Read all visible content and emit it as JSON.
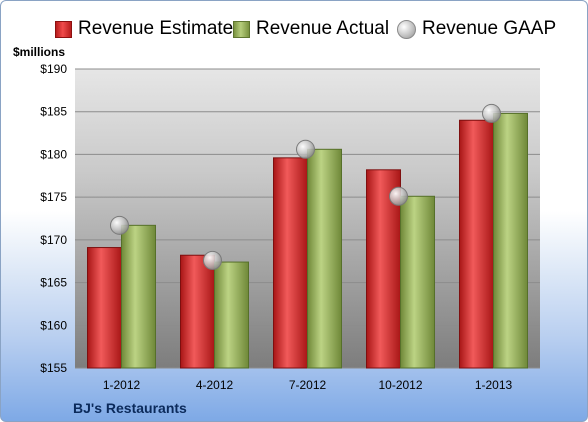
{
  "legend": {
    "estimate": "Revenue Estimate",
    "actual": "Revenue Actual",
    "gaap": "Revenue GAAP"
  },
  "unit_label": "$millions",
  "company": "BJ's Restaurants",
  "colors": {
    "estimate": "#d42a2a",
    "actual": "#98b255",
    "gaap": "#bdbdbd"
  },
  "chart_data": {
    "type": "bar",
    "categories": [
      "1-2012",
      "4-2012",
      "7-2012",
      "10-2012",
      "1-2013"
    ],
    "series": [
      {
        "name": "Revenue Estimate",
        "values": [
          169.1,
          168.2,
          179.6,
          178.2,
          184.0
        ]
      },
      {
        "name": "Revenue Actual",
        "values": [
          171.7,
          167.4,
          180.6,
          175.1,
          184.8
        ]
      },
      {
        "name": "Revenue GAAP",
        "values": [
          171.7,
          167.6,
          180.6,
          175.1,
          184.8
        ]
      }
    ],
    "ylim": [
      155,
      190
    ],
    "yticks": [
      "$155",
      "$160",
      "$165",
      "$170",
      "$175",
      "$180",
      "$185",
      "$190"
    ],
    "grid": true,
    "legend_position": "top"
  }
}
